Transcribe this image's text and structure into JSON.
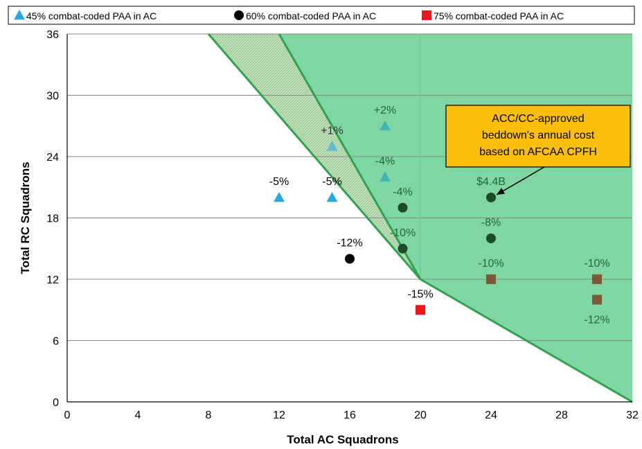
{
  "chart_data": {
    "type": "scatter",
    "xlabel": "Total AC Squadrons",
    "ylabel": "Total RC Squadrons",
    "xlim": [
      0,
      32
    ],
    "ylim": [
      0,
      36
    ],
    "x_ticks": [
      0,
      4,
      8,
      12,
      16,
      20,
      24,
      28,
      32
    ],
    "y_ticks": [
      0,
      6,
      12,
      18,
      24,
      30,
      36
    ],
    "grid": "horizontal",
    "legend": "top",
    "regions": [
      {
        "name": "light-hatched-region",
        "color": "#b9d9b4",
        "points": [
          [
            8,
            36
          ],
          [
            12,
            36
          ],
          [
            20,
            12
          ]
        ]
      },
      {
        "name": "green-region",
        "color": "#7fd6a3",
        "points": [
          [
            12,
            36
          ],
          [
            32,
            36
          ],
          [
            32,
            0
          ],
          [
            20,
            12
          ]
        ]
      }
    ],
    "boundary_line": [
      [
        8,
        36
      ],
      [
        20,
        12
      ],
      [
        32,
        0
      ]
    ],
    "boundary_color": "#2ea24e",
    "series": [
      {
        "name": "45% combat-coded PAA in AC",
        "marker": "triangle",
        "color": "#29a8e0",
        "points": [
          {
            "x": 12,
            "y": 20,
            "label": "-5%",
            "label_pos": "above",
            "label_color": "#000000"
          },
          {
            "x": 15,
            "y": 20,
            "label": "-5%",
            "label_pos": "above",
            "label_color": "#000000"
          },
          {
            "x": 15,
            "y": 25,
            "label": "+1%",
            "label_pos": "above",
            "label_color": "#333333",
            "color": "#5fbcd0"
          },
          {
            "x": 18,
            "y": 22,
            "label": "-4%",
            "label_pos": "above",
            "label_color": "#1a6b35",
            "color": "#3fb6b0"
          },
          {
            "x": 18,
            "y": 27,
            "label": "+2%",
            "label_pos": "above",
            "label_color": "#1a6b35",
            "color": "#3fb6b0"
          }
        ]
      },
      {
        "name": "60% combat-coded PAA in AC",
        "marker": "circle",
        "color": "#000000",
        "points": [
          {
            "x": 16,
            "y": 14,
            "label": "-12%",
            "label_pos": "above",
            "label_color": "#000000"
          },
          {
            "x": 19,
            "y": 15,
            "label": "-10%",
            "label_pos": "above",
            "label_color": "#1a6b35",
            "color": "#1b4d2b"
          },
          {
            "x": 19,
            "y": 19,
            "label": "-4%",
            "label_pos": "above",
            "label_color": "#1a6b35",
            "color": "#1b4d2b"
          },
          {
            "x": 24,
            "y": 20,
            "label": "$4.4B",
            "label_pos": "above",
            "label_color": "#1a6b35",
            "color": "#1b4d2b"
          },
          {
            "x": 24,
            "y": 16,
            "label": "-8%",
            "label_pos": "above",
            "label_color": "#1a6b35",
            "color": "#1b4d2b"
          }
        ]
      },
      {
        "name": "75% combat-coded PAA in AC",
        "marker": "square",
        "color": "#e8191c",
        "points": [
          {
            "x": 20,
            "y": 9,
            "label": "-15%",
            "label_pos": "above",
            "label_color": "#000000"
          },
          {
            "x": 24,
            "y": 12,
            "label": "-10%",
            "label_pos": "above",
            "label_color": "#1a6b35",
            "color": "#7a5a38"
          },
          {
            "x": 30,
            "y": 12,
            "label": "-10%",
            "label_pos": "above",
            "label_color": "#1a6b35",
            "color": "#7a5a38"
          },
          {
            "x": 30,
            "y": 10,
            "label": "-12%",
            "label_pos": "below",
            "label_color": "#1a6b35",
            "color": "#7a5a38"
          }
        ]
      }
    ],
    "annotation": {
      "lines": [
        "ACC/CC-approved",
        "beddown's annual cost",
        "based on AFCAA CPFH"
      ],
      "box_color": "#fbbf0b",
      "arrow_target": [
        24,
        20
      ]
    }
  }
}
